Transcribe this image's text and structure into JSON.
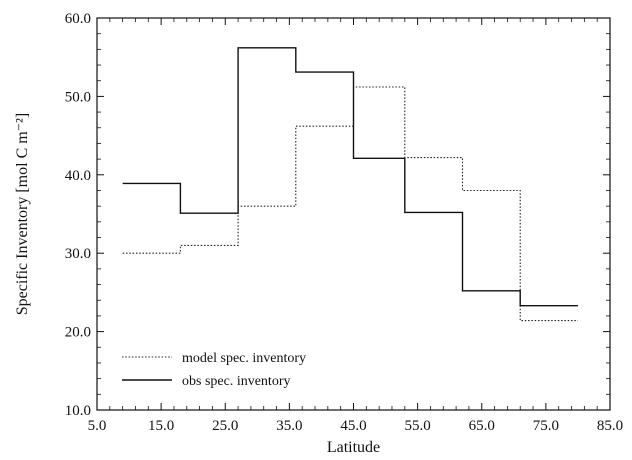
{
  "chart_data": {
    "type": "line",
    "step": true,
    "xlabel": "Latitude",
    "ylabel": "Specific Inventory [mol C m⁻²]",
    "xlim": [
      5.0,
      85.0
    ],
    "ylim": [
      10.0,
      60.0
    ],
    "xticks": [
      5.0,
      15.0,
      25.0,
      35.0,
      45.0,
      55.0,
      65.0,
      75.0,
      85.0
    ],
    "yticks": [
      10.0,
      20.0,
      30.0,
      40.0,
      50.0,
      60.0
    ],
    "xtick_labels": [
      "5.0",
      "15.0",
      "25.0",
      "35.0",
      "45.0",
      "55.0",
      "65.0",
      "75.0",
      "85.0"
    ],
    "ytick_labels": [
      "10.0",
      "20.0",
      "30.0",
      "40.0",
      "50.0",
      "60.0"
    ],
    "legend_position": "lower-left",
    "series": [
      {
        "name": "model spec. inventory",
        "style": "dotted",
        "color": "#222222",
        "bins": [
          {
            "x0": 9,
            "x1": 18,
            "y": 30.0
          },
          {
            "x0": 18,
            "x1": 27,
            "y": 31.0
          },
          {
            "x0": 27,
            "x1": 36,
            "y": 36.0
          },
          {
            "x0": 36,
            "x1": 45,
            "y": 46.2
          },
          {
            "x0": 45,
            "x1": 53,
            "y": 51.2
          },
          {
            "x0": 53,
            "x1": 62,
            "y": 42.2
          },
          {
            "x0": 62,
            "x1": 71,
            "y": 38.0
          },
          {
            "x0": 71,
            "x1": 80,
            "y": 21.4
          }
        ]
      },
      {
        "name": "obs spec. inventory",
        "style": "solid",
        "color": "#111111",
        "bins": [
          {
            "x0": 9,
            "x1": 18,
            "y": 38.9
          },
          {
            "x0": 18,
            "x1": 27,
            "y": 35.1
          },
          {
            "x0": 27,
            "x1": 36,
            "y": 56.2
          },
          {
            "x0": 36,
            "x1": 45,
            "y": 53.1
          },
          {
            "x0": 45,
            "x1": 53,
            "y": 42.1
          },
          {
            "x0": 53,
            "x1": 62,
            "y": 35.2
          },
          {
            "x0": 62,
            "x1": 71,
            "y": 25.2
          },
          {
            "x0": 71,
            "x1": 80,
            "y": 23.3
          }
        ]
      }
    ]
  }
}
